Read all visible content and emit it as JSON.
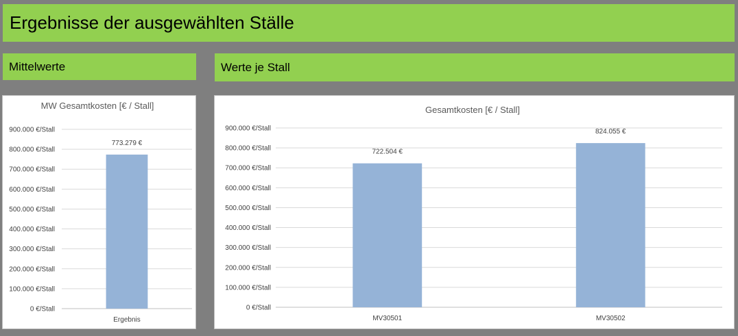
{
  "header": {
    "title": "Ergebnisse der ausgewählten Ställe"
  },
  "left_section": {
    "title": "Mittelwerte"
  },
  "right_section": {
    "title": "Werte je Stall"
  },
  "colors": {
    "banner": "#92d050",
    "bar": "#95b3d7",
    "background": "#7f7f7f",
    "grid": "#d9d9d9"
  },
  "chart_data": [
    {
      "type": "bar",
      "title": "MW Gesamtkosten [€ / Stall]",
      "categories": [
        "Ergebnis"
      ],
      "values": [
        773279
      ],
      "data_labels": [
        "773.279 €"
      ],
      "ylim": [
        0,
        900000
      ],
      "yticks": [
        0,
        100000,
        200000,
        300000,
        400000,
        500000,
        600000,
        700000,
        800000,
        900000
      ],
      "ytick_labels": [
        "0 €/Stall",
        "100.000 €/Stall",
        "200.000 €/Stall",
        "300.000 €/Stall",
        "400.000 €/Stall",
        "500.000 €/Stall",
        "600.000 €/Stall",
        "700.000 €/Stall",
        "800.000 €/Stall",
        "900.000 €/Stall"
      ],
      "grid": true,
      "legend": "none"
    },
    {
      "type": "bar",
      "title": "Gesamtkosten [€ / Stall]",
      "categories": [
        "MV30501",
        "MV30502"
      ],
      "values": [
        722504,
        824055
      ],
      "data_labels": [
        "722.504 €",
        "824.055 €"
      ],
      "ylim": [
        0,
        900000
      ],
      "yticks": [
        0,
        100000,
        200000,
        300000,
        400000,
        500000,
        600000,
        700000,
        800000,
        900000
      ],
      "ytick_labels": [
        "0 €/Stall",
        "100.000 €/Stall",
        "200.000 €/Stall",
        "300.000 €/Stall",
        "400.000 €/Stall",
        "500.000 €/Stall",
        "600.000 €/Stall",
        "700.000 €/Stall",
        "800.000 €/Stall",
        "900.000 €/Stall"
      ],
      "grid": true,
      "legend": "none"
    }
  ]
}
